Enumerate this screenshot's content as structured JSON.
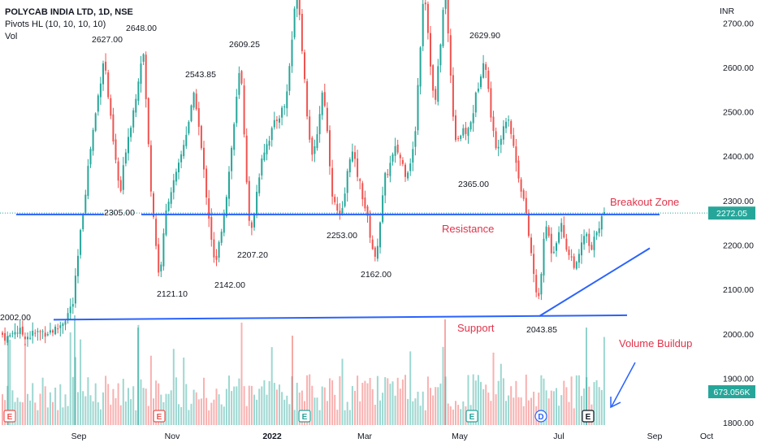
{
  "header": {
    "title": "POLYCAB INDIA LTD, 1D, NSE",
    "indicator": "Pivots HL (10, 10, 10, 10)",
    "volume_label": "Vol"
  },
  "currency": "INR",
  "colors": {
    "up": "#26a69a",
    "down": "#ef5350",
    "trendline": "#2962ff",
    "annotation": "#e0334a",
    "grid": "#f0f3fa"
  },
  "chart_data": {
    "type": "candlestick",
    "title": "POLYCAB INDIA LTD, 1D, NSE",
    "y_axis": {
      "position": "right",
      "unit": "INR",
      "ylim": [
        1790,
        2800
      ],
      "ticks": [
        "1800.00",
        "1900.00",
        "2000.00",
        "2100.00",
        "2200.00",
        "2300.00",
        "2400.00",
        "2500.00",
        "2600.00",
        "2700.00"
      ]
    },
    "x_axis": {
      "ticks": [
        "Sep",
        "Nov",
        "2022",
        "Mar",
        "May",
        "Jul",
        "Sep",
        "Oct"
      ]
    },
    "grid": false,
    "last_price": "2272.05",
    "last_volume": "673.056K",
    "pivot_labels": [
      {
        "text": "2002.00",
        "price": 2002.0
      },
      {
        "text": "2627.00",
        "price": 2627.0
      },
      {
        "text": "2648.00",
        "price": 2648.0
      },
      {
        "text": "2305.00",
        "price": 2305.0
      },
      {
        "text": "2121.10",
        "price": 2121.1
      },
      {
        "text": "2543.85",
        "price": 2543.85
      },
      {
        "text": "2142.00",
        "price": 2142.0
      },
      {
        "text": "2609.25",
        "price": 2609.25
      },
      {
        "text": "2207.20",
        "price": 2207.2
      },
      {
        "text": "2253.00",
        "price": 2253.0
      },
      {
        "text": "2162.00",
        "price": 2162.0
      },
      {
        "text": "2629.90",
        "price": 2629.9
      },
      {
        "text": "2365.00",
        "price": 2365.0
      },
      {
        "text": "2043.85",
        "price": 2043.85
      }
    ],
    "trendlines": [
      {
        "name": "resistance",
        "price_from": 2269,
        "price_to": 2269
      },
      {
        "name": "support",
        "price_from": 2032,
        "price_to": 2042
      },
      {
        "name": "rising-support",
        "price_from": 2040,
        "price_to": 2193
      }
    ],
    "event_markers": [
      "E",
      "E",
      "E",
      "E",
      "D",
      "E"
    ],
    "annotations": {
      "breakout": "Breakout Zone",
      "resistance": "Resistance",
      "support": "Support",
      "volume": "Volume Buildup"
    },
    "series": [
      {
        "name": "price",
        "ohlc": "daily candles, approx. 2002 → 2272.05"
      },
      {
        "name": "volume",
        "ohlc": "daily volume bars"
      }
    ]
  }
}
